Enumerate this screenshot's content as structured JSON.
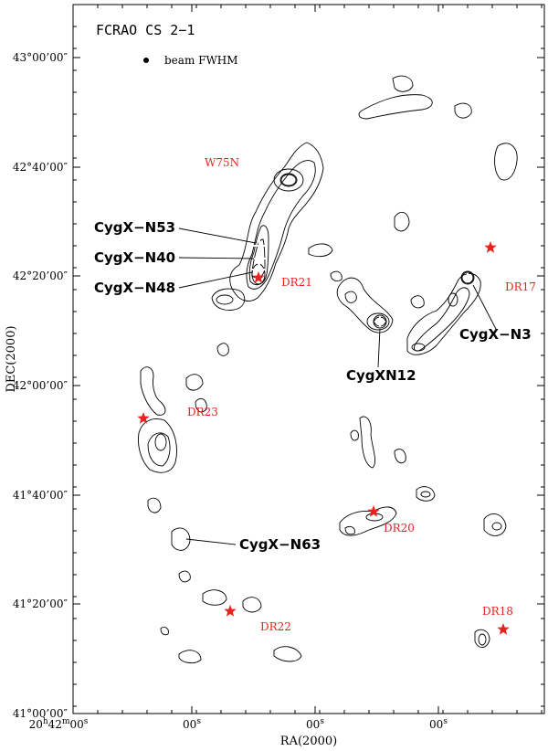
{
  "title": "FCRAO   CS 2−1",
  "beam_label": "beam FWHM",
  "xlabel": "RA(2000)",
  "ylabel": "DEC(2000)",
  "dec_ticks": [
    "43°00’00″",
    "42°40’00″",
    "42°20’00″",
    "42°00’00″",
    "41°40’00″",
    "41°20’00″",
    "41°00’00″"
  ],
  "ra_ticks": [
    {
      "h": "20",
      "hs": "h",
      "m": "42",
      "ms": "m",
      "s": "00",
      "ss": "s"
    },
    {
      "s": "00",
      "ss": "s"
    },
    {
      "s": "00",
      "ss": "s"
    },
    {
      "s": "00",
      "ss": "s"
    },
    {
      "s": "00",
      "ss": "s"
    }
  ],
  "sources": [
    {
      "name": "CygX−N53"
    },
    {
      "name": "CygX−N40"
    },
    {
      "name": "CygX−N48"
    },
    {
      "name": "CygXN12"
    },
    {
      "name": "CygX−N3"
    },
    {
      "name": "CygX−N63"
    }
  ],
  "hii_regions": [
    {
      "name": "W75N"
    },
    {
      "name": "DR21"
    },
    {
      "name": "DR17"
    },
    {
      "name": "DR23"
    },
    {
      "name": "DR20"
    },
    {
      "name": "DR22"
    },
    {
      "name": "DR18"
    }
  ],
  "colors": {
    "star": "#e8231f",
    "hii_label": "#e8231f",
    "contour": "#000000"
  }
}
